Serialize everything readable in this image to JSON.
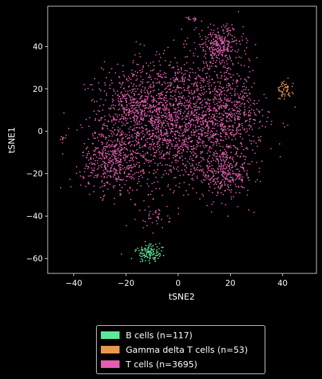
{
  "chart_data": {
    "type": "scatter",
    "title": "",
    "xlabel": "tSNE2",
    "ylabel": "tSNE1",
    "xlim": [
      -50,
      53
    ],
    "ylim": [
      -67,
      59
    ],
    "xticks": [
      "−40",
      "−20",
      "0",
      "20",
      "40"
    ],
    "yticks": [
      "40",
      "20",
      "0",
      "−20",
      "−40",
      "−60"
    ],
    "xtick_values": [
      -40,
      -20,
      0,
      20,
      40
    ],
    "ytick_values": [
      40,
      20,
      0,
      -20,
      -40,
      -60
    ],
    "background": "#000000",
    "series": [
      {
        "name": "B cells (n=117)",
        "color": "#5ee89b",
        "count": 117,
        "clusters": [
          {
            "cx": -11,
            "cy": -57.5,
            "sx": 2.6,
            "sy": 2.0,
            "n": 117
          }
        ]
      },
      {
        "name": "Gamma delta T cells (n=53)",
        "color": "#e8984a",
        "count": 53,
        "clusters": [
          {
            "cx": 41,
            "cy": 19,
            "sx": 1.5,
            "sy": 2.2,
            "n": 53
          }
        ]
      },
      {
        "name": "T cells (n=3695)",
        "color": "#e35db1",
        "count": 3695,
        "clusters": [
          {
            "cx": 0,
            "cy": 5,
            "sx": 14,
            "sy": 15,
            "n": 1900
          },
          {
            "cx": -25,
            "cy": -14,
            "sx": 6,
            "sy": 7,
            "n": 450
          },
          {
            "cx": 16,
            "cy": 40,
            "sx": 4.5,
            "sy": 5,
            "n": 300
          },
          {
            "cx": 18,
            "cy": -20,
            "sx": 5.5,
            "sy": 5,
            "n": 300
          },
          {
            "cx": 20,
            "cy": 8,
            "sx": 6,
            "sy": 9,
            "n": 350
          },
          {
            "cx": -15,
            "cy": 12,
            "sx": 7,
            "sy": 8,
            "n": 330
          },
          {
            "cx": 5,
            "cy": 53,
            "sx": 0.9,
            "sy": 0.6,
            "n": 15
          },
          {
            "cx": -44,
            "cy": -3.5,
            "sx": 0.7,
            "sy": 1.0,
            "n": 10
          },
          {
            "cx": -9,
            "cy": -40,
            "sx": 3,
            "sy": 3,
            "n": 40
          }
        ]
      }
    ],
    "legend": {
      "placement": "bottom-center-outside",
      "entries": [
        "B cells (n=117)",
        "Gamma delta T cells (n=53)",
        "T cells (n=3695)"
      ]
    }
  }
}
